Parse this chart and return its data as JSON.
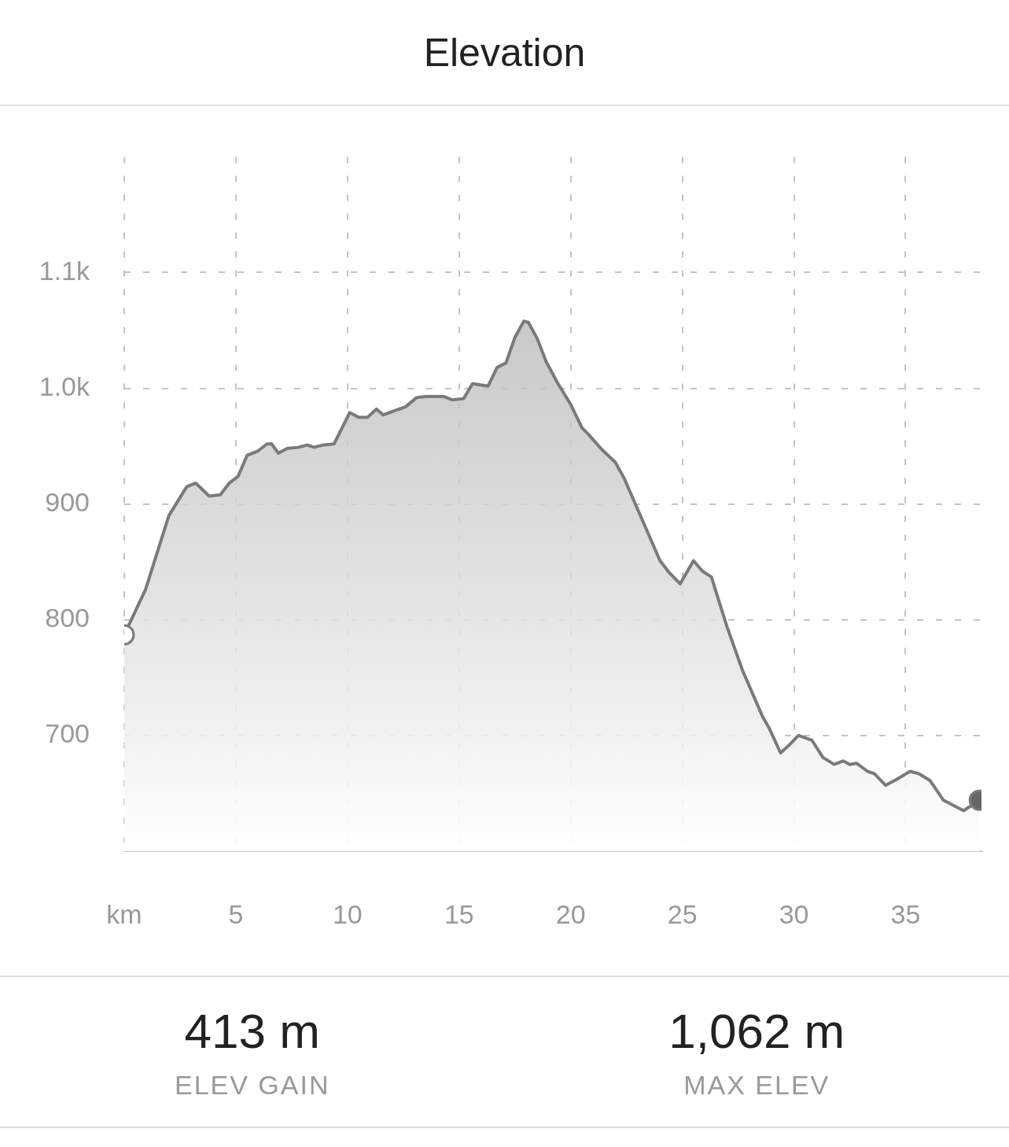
{
  "chart_data": {
    "type": "area",
    "title": "Elevation",
    "x": [
      0,
      0.95,
      2.0,
      2.8,
      3.2,
      3.8,
      4.3,
      4.7,
      5.1,
      5.5,
      6.0,
      6.4,
      6.6,
      6.9,
      7.3,
      7.8,
      8.2,
      8.5,
      8.9,
      9.4,
      10.1,
      10.5,
      10.9,
      11.3,
      11.6,
      12.0,
      12.6,
      13.1,
      13.5,
      13.8,
      14.3,
      14.7,
      15.2,
      15.6,
      16.3,
      16.7,
      17.1,
      17.5,
      17.9,
      18.1,
      18.5,
      18.9,
      19.4,
      20.0,
      20.5,
      20.8,
      21.4,
      22.0,
      22.4,
      23.1,
      24.0,
      24.4,
      24.9,
      25.5,
      25.9,
      26.3,
      27.0,
      27.7,
      28.6,
      28.9,
      29.4,
      29.8,
      30.2,
      30.8,
      31.3,
      31.8,
      32.2,
      32.5,
      32.8,
      33.3,
      33.6,
      34.1,
      34.6,
      35.2,
      35.6,
      36.1,
      36.7,
      37.6,
      38.3
    ],
    "series": [
      {
        "color": "#7a7a7a",
        "values": [
          787,
          826,
          890,
          915,
          918,
          907,
          908,
          918,
          924,
          942,
          946,
          952,
          952,
          944,
          948,
          949,
          951,
          949,
          951,
          952,
          979,
          975,
          975,
          982,
          977,
          980,
          984,
          992,
          993,
          993,
          993,
          990,
          991,
          1004,
          1002,
          1018,
          1022,
          1044,
          1058,
          1057,
          1043,
          1023,
          1005,
          986,
          966,
          960,
          947,
          936,
          922,
          891,
          851,
          841,
          831,
          851,
          842,
          837,
          794,
          756,
          716,
          706,
          685,
          692,
          700,
          696,
          681,
          675,
          678,
          675,
          676,
          669,
          667,
          657,
          662,
          669,
          667,
          661,
          644,
          635,
          644
        ]
      }
    ],
    "xlim": [
      0,
      38.4
    ],
    "ylim": [
      600,
      1200
    ],
    "xticks": [
      {
        "value": 0,
        "label": "km"
      },
      5,
      10,
      15,
      20,
      25,
      30,
      35
    ],
    "yticks": [
      {
        "value": 600,
        "label": null
      },
      700,
      800,
      900,
      {
        "value": 1000,
        "label": "1.0k"
      },
      {
        "value": 1100,
        "label": "1.1k"
      }
    ],
    "grid": true,
    "legend": false,
    "line_style": "solid",
    "annotations": [
      "413 m",
      "ELEV GAIN",
      "1,062 m",
      "MAX ELEV"
    ]
  }
}
